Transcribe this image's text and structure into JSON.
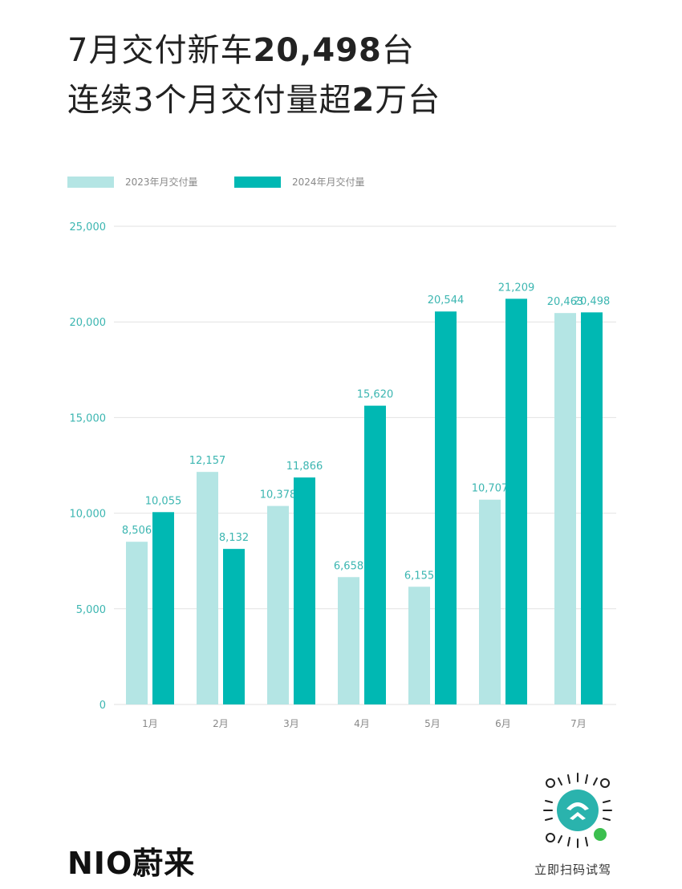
{
  "headline": {
    "line1_prefix": "7月交付新车",
    "line1_number": "20,498",
    "line1_suffix": "台",
    "line2_prefix": "连续3个月交付量超",
    "line2_number": "2",
    "line2_suffix": "万台"
  },
  "chart_data": {
    "type": "bar",
    "categories": [
      "1月",
      "2月",
      "3月",
      "4月",
      "5月",
      "6月",
      "7月"
    ],
    "series": [
      {
        "name": "2023年月交付量",
        "values": [
          8506,
          12157,
          10378,
          6658,
          6155,
          10707,
          20463
        ],
        "labels": [
          "8,506",
          "12,157",
          "10,378",
          "6,658",
          "6,155",
          "10,707",
          "20,463"
        ],
        "color": "#b4e5e4"
      },
      {
        "name": "2024年月交付量",
        "values": [
          10055,
          8132,
          11866,
          15620,
          20544,
          21209,
          20498
        ],
        "labels": [
          "10,055",
          "8,132",
          "11,866",
          "15,620",
          "20,544",
          "21,209",
          "20,498"
        ],
        "color": "#00b8b3"
      }
    ],
    "ylim": [
      0,
      25000
    ],
    "yticks": [
      0,
      5000,
      10000,
      15000,
      20000,
      25000
    ],
    "ytick_labels": [
      "0",
      "5,000",
      "10,000",
      "15,000",
      "20,000",
      "25,000"
    ],
    "grid": true,
    "legend_position": "top-left",
    "label_color": "#3cb6b1"
  },
  "brand": {
    "logo": "NIO蔚来"
  },
  "qr": {
    "caption": "立即扫码试驾"
  }
}
